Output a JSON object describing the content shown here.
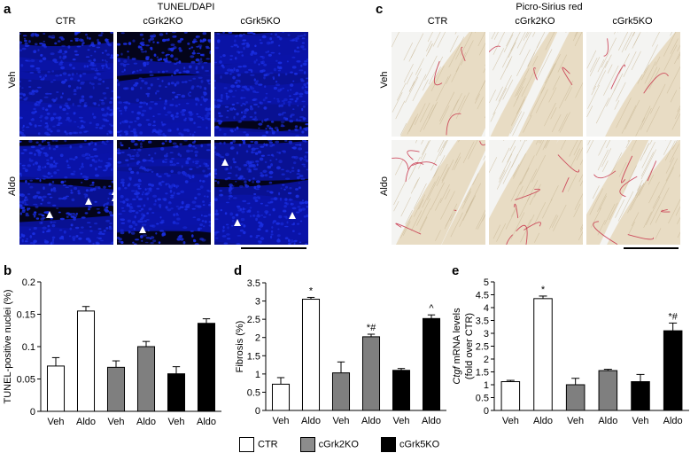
{
  "panels": {
    "a": {
      "letter": "a",
      "title": "TUNEL/DAPI",
      "columns": [
        "CTR",
        "cGrk2KO",
        "cGrk5KO"
      ],
      "rows": [
        "Veh",
        "Aldo"
      ],
      "colors": {
        "background": "#04041a",
        "nuclei": "#1a2ee0",
        "arrow": "#ffffff"
      }
    },
    "c": {
      "letter": "c",
      "title": "Picro-Sirius red",
      "columns": [
        "CTR",
        "cGrk2KO",
        "cGrk5KO"
      ],
      "rows": [
        "Veh",
        "Aldo"
      ],
      "colors": {
        "tissue": "#e8dcc4",
        "fiber": "#c9b896",
        "collagen": "#c8334a",
        "background": "#f4f4f2"
      }
    },
    "b": {
      "letter": "b"
    },
    "d": {
      "letter": "d"
    },
    "e": {
      "letter": "e"
    }
  },
  "chart_data": [
    {
      "panel": "b",
      "type": "bar",
      "categories": [
        "Veh",
        "Aldo",
        "Veh",
        "Aldo",
        "Veh",
        "Aldo"
      ],
      "groups": [
        "CTR",
        "CTR",
        "cGrk2KO",
        "cGrk2KO",
        "cGrk5KO",
        "cGrk5KO"
      ],
      "values": [
        0.07,
        0.155,
        0.068,
        0.1,
        0.058,
        0.136
      ],
      "errors": [
        0.013,
        0.007,
        0.01,
        0.008,
        0.011,
        0.007
      ],
      "annotations": [
        "",
        "",
        "",
        "",
        "",
        ""
      ],
      "ylabel": "TUNEL-positive nuclei (%)",
      "ylim": [
        0,
        0.2
      ],
      "yticks": [
        "0",
        "0.05",
        "0.1",
        "0.15",
        "0.2"
      ],
      "yticks_values": [
        0,
        0.05,
        0.1,
        0.15,
        0.2
      ]
    },
    {
      "panel": "d",
      "type": "bar",
      "categories": [
        "Veh",
        "Aldo",
        "Veh",
        "Aldo",
        "Veh",
        "Aldo"
      ],
      "groups": [
        "CTR",
        "CTR",
        "cGrk2KO",
        "cGrk2KO",
        "cGrk5KO",
        "cGrk5KO"
      ],
      "values": [
        0.72,
        3.05,
        1.03,
        2.02,
        1.1,
        2.52
      ],
      "errors": [
        0.18,
        0.05,
        0.3,
        0.07,
        0.05,
        0.1
      ],
      "annotations": [
        "",
        "*",
        "",
        "*#",
        "",
        "^"
      ],
      "ylabel": "Fibrosis (%)",
      "ylim": [
        0,
        3.5
      ],
      "yticks": [
        "0",
        "0.5",
        "1",
        "1.5",
        "2",
        "2.5",
        "3",
        "3.5"
      ],
      "yticks_values": [
        0,
        0.5,
        1,
        1.5,
        2,
        2.5,
        3,
        3.5
      ]
    },
    {
      "panel": "e",
      "type": "bar",
      "categories": [
        "Veh",
        "Aldo",
        "Veh",
        "Aldo",
        "Veh",
        "Aldo"
      ],
      "groups": [
        "CTR",
        "CTR",
        "cGrk2KO",
        "cGrk2KO",
        "cGrk5KO",
        "cGrk5KO"
      ],
      "values": [
        1.12,
        4.35,
        1.0,
        1.55,
        1.12,
        3.1
      ],
      "errors": [
        0.05,
        0.1,
        0.25,
        0.05,
        0.28,
        0.3
      ],
      "annotations": [
        "",
        "*",
        "",
        "",
        "",
        "*#"
      ],
      "ylabel_line1": "Ctgf mRNA levels",
      "ylabel_line2": "(fold over CTR)",
      "ylim": [
        0,
        5
      ],
      "yticks": [
        "0",
        "0.5",
        "1",
        "1.5",
        "2",
        "2.5",
        "3",
        "3.5",
        "4",
        "4.5",
        "5"
      ],
      "yticks_values": [
        0,
        0.5,
        1,
        1.5,
        2,
        2.5,
        3,
        3.5,
        4,
        4.5,
        5
      ]
    }
  ],
  "bar_colors": {
    "CTR": "#ffffff",
    "cGrk2KO": "#7f7f7f",
    "cGrk5KO": "#000000"
  },
  "legend": [
    {
      "label": "CTR",
      "color": "#ffffff"
    },
    {
      "label": "cGrk2KO",
      "color": "#8c8c8c"
    },
    {
      "label": "cGrk5KO",
      "color": "#000000"
    }
  ]
}
